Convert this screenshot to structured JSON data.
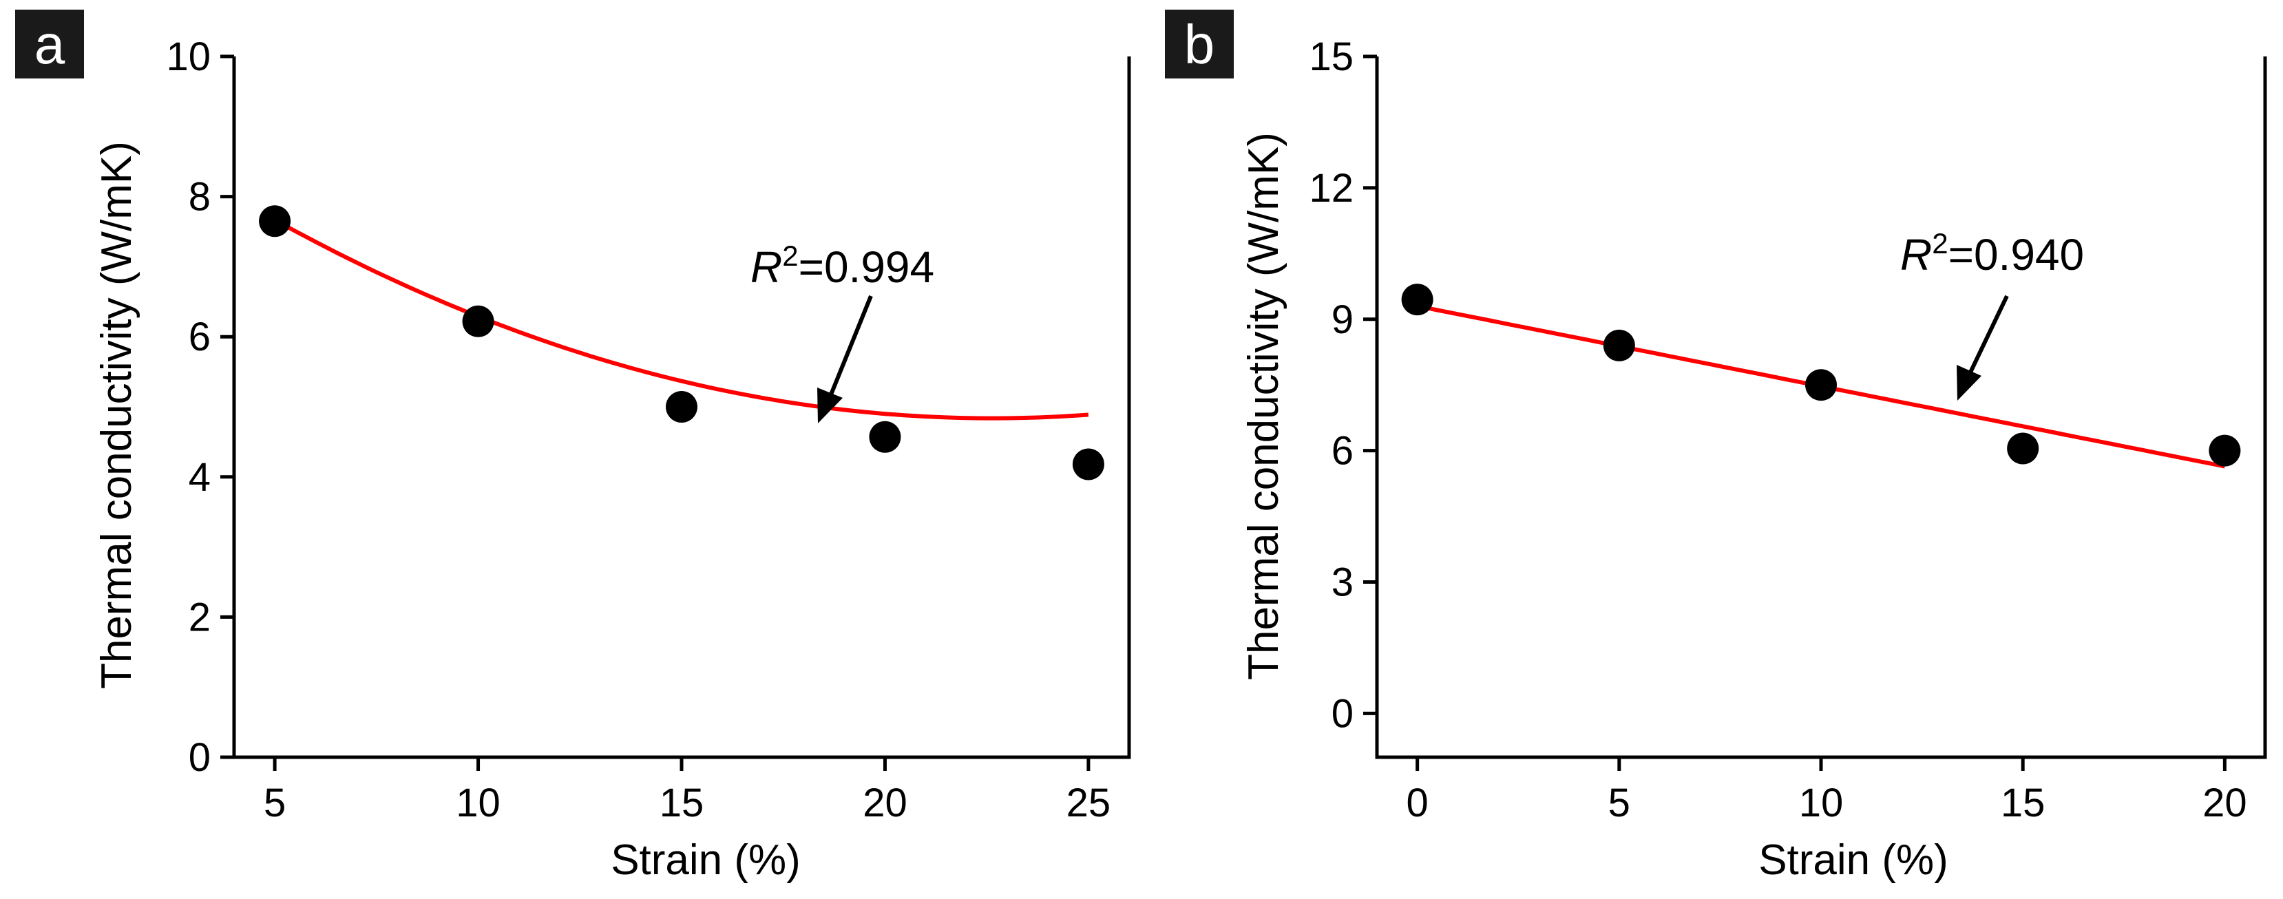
{
  "chart_data": [
    {
      "panel": "a",
      "type": "scatter",
      "xlabel": "Strain (%)",
      "ylabel": "Thermal conductivity (W/mK)",
      "xlim": [
        4,
        26
      ],
      "ylim": [
        0,
        10
      ],
      "xticks": [
        5,
        10,
        15,
        20,
        25
      ],
      "yticks": [
        0,
        2,
        4,
        6,
        8,
        10
      ],
      "x": [
        5,
        10,
        15,
        20,
        25
      ],
      "y": [
        7.65,
        6.22,
        5.0,
        4.57,
        4.18
      ],
      "fit": {
        "type": "polynomial",
        "coefficients": [
          9.5,
          -0.412,
          0.0091
        ],
        "x_range": [
          5,
          25
        ],
        "color": "#ff0000"
      },
      "annotation": {
        "prefix": "R",
        "superscript": "2",
        "suffix": "=0.994",
        "arrow_target": [
          18.4,
          4.8
        ]
      }
    },
    {
      "panel": "b",
      "type": "scatter",
      "xlabel": "Strain (%)",
      "ylabel": "Thermal conductivity (W/mK)",
      "xlim": [
        -1,
        21
      ],
      "ylim": [
        -1,
        15
      ],
      "xticks": [
        0,
        5,
        10,
        15,
        20
      ],
      "yticks": [
        0,
        3,
        6,
        9,
        12,
        15
      ],
      "x": [
        0,
        5,
        10,
        15,
        20
      ],
      "y": [
        9.45,
        8.4,
        7.5,
        6.05,
        6.0
      ],
      "fit": {
        "type": "linear",
        "coefficients": [
          9.3,
          -0.183
        ],
        "x_range": [
          0,
          20
        ],
        "color": "#ff0000"
      },
      "annotation": {
        "prefix": "R",
        "superscript": "2",
        "suffix": "=0.940",
        "arrow_target": [
          13.4,
          7.1
        ]
      }
    }
  ]
}
